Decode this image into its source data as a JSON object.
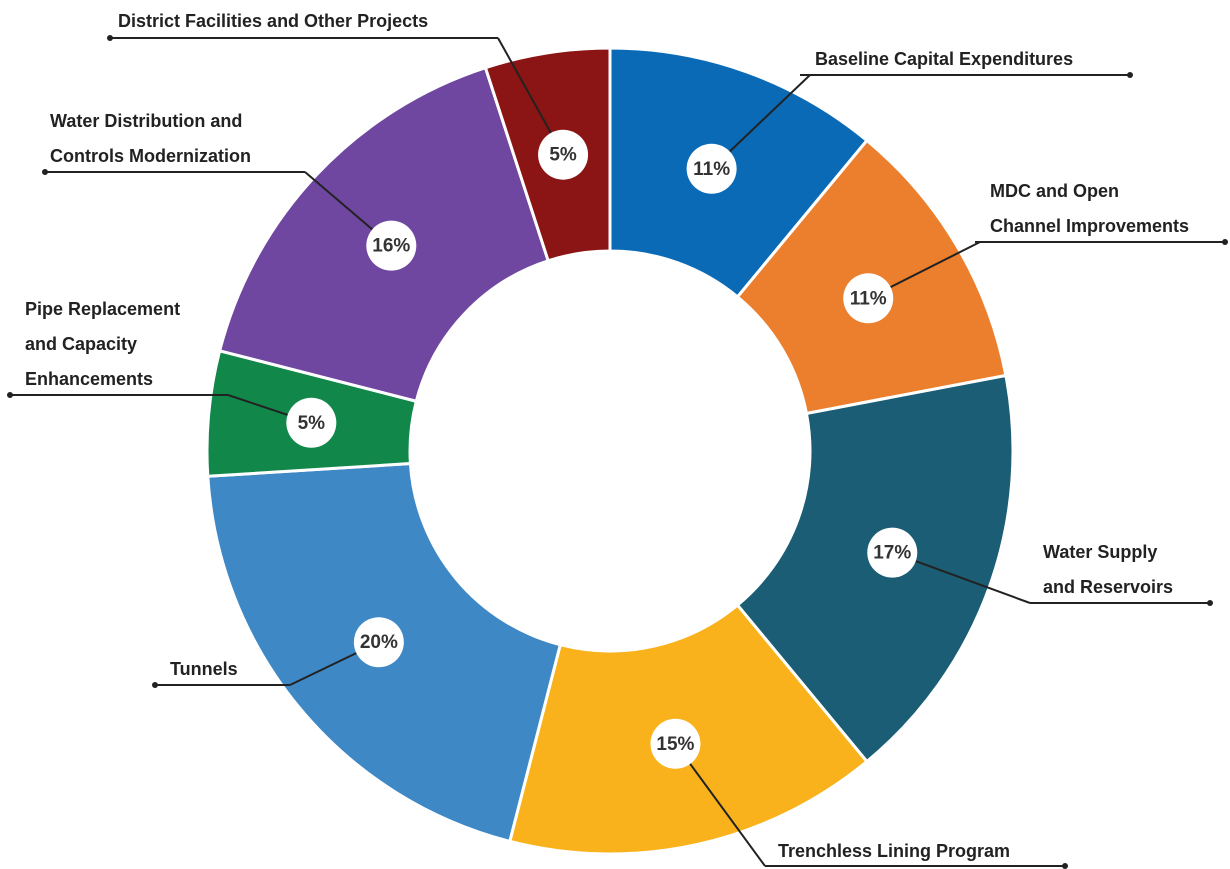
{
  "chart_data": {
    "type": "donut",
    "categories": [
      "Baseline Capital Expenditures",
      "MDC and Open Channel Improvements",
      "Water Supply and Reservoirs",
      "Trenchless Lining Program",
      "Tunnels",
      "Pipe Replacement and Capacity Enhancements",
      "Water Distribution and Controls Modernization",
      "District Facilities and Other Projects"
    ],
    "values": [
      11,
      11,
      17,
      15,
      20,
      5,
      16,
      5
    ],
    "value_labels": [
      "11%",
      "11%",
      "17%",
      "15%",
      "20%",
      "5%",
      "16%",
      "5%"
    ],
    "colors": [
      "#0a6ab6",
      "#ec7f2e",
      "#1a5d74",
      "#f9b21b",
      "#3e88c6",
      "#11874a",
      "#6f47a0",
      "#8b1414"
    ]
  }
}
